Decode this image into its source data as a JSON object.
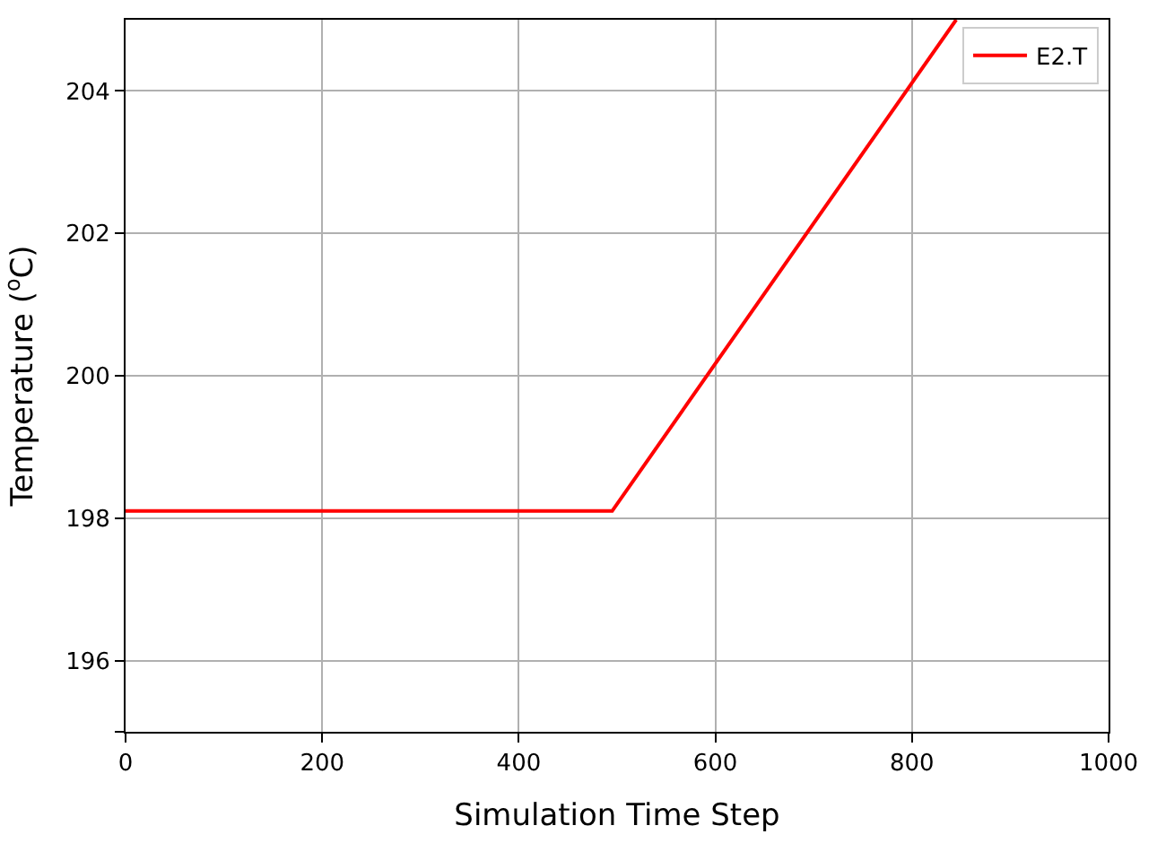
{
  "chart_data": {
    "type": "line",
    "xlabel": "Simulation Time Step",
    "ylabel": "Temperature ($^{o}$C)",
    "x": [
      0,
      495,
      845
    ],
    "series": [
      {
        "name": "E2.T",
        "color": "#ff0000",
        "values": [
          198.1,
          198.1,
          205.0
        ]
      }
    ],
    "xlim": [
      0,
      1000
    ],
    "xticks": [
      0,
      200,
      400,
      600,
      800,
      1000
    ],
    "ylim": [
      195,
      205
    ],
    "yticks": [
      {
        "value": 195,
        "label": null
      },
      196,
      198,
      200,
      202,
      204
    ],
    "grid": true,
    "legend": "top right",
    "marker": "none",
    "line_style": "solid"
  }
}
